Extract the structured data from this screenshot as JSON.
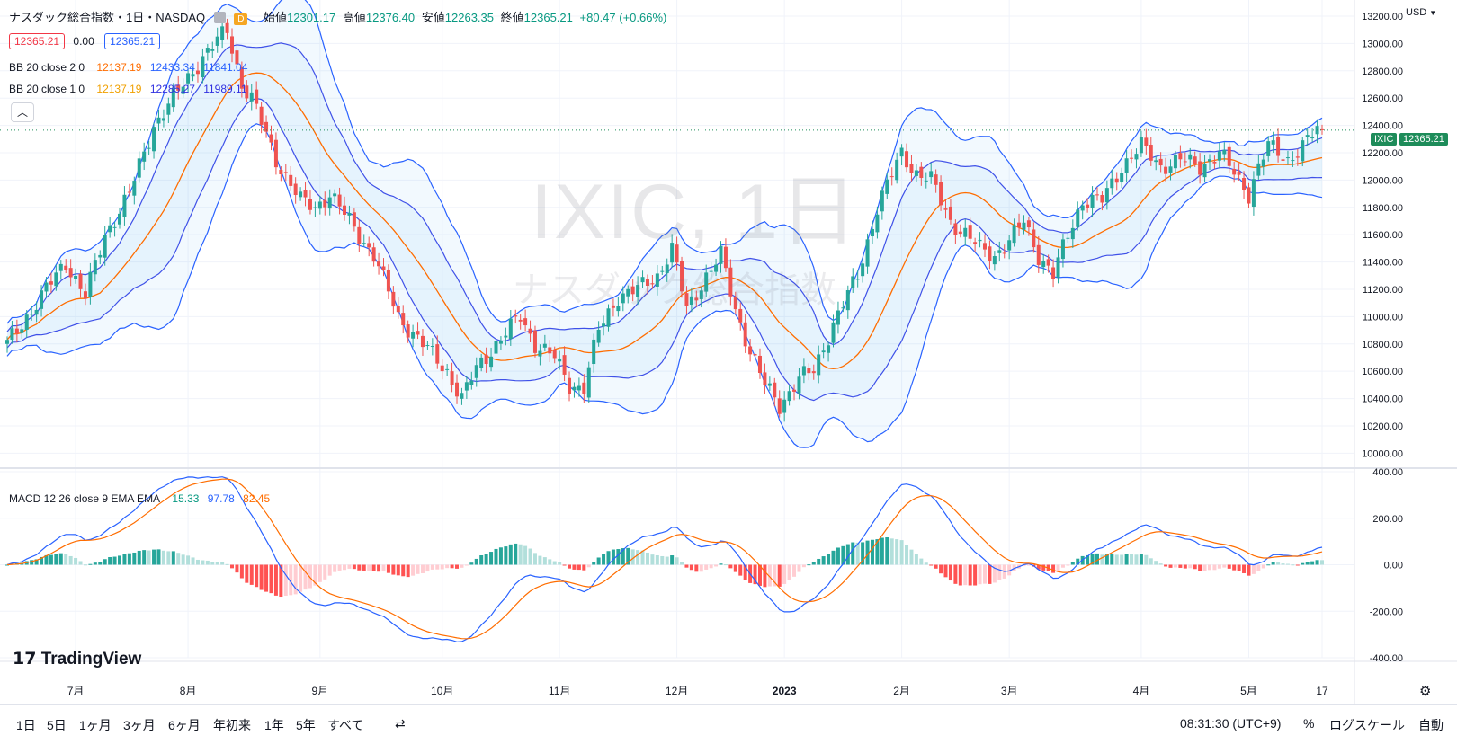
{
  "header": {
    "symbol_title": "ナスダック総合指数・1日・NASDAQ",
    "open_label": "始値",
    "open": "12301.17",
    "high_label": "高値",
    "high": "12376.40",
    "low_label": "安値",
    "low": "12263.35",
    "close_label": "終値",
    "close": "12365.21",
    "change": "+80.47 (+0.66%)",
    "interval_badge": "D"
  },
  "order_row": {
    "sell": "12365.21",
    "spread": "0.00",
    "buy": "12365.21"
  },
  "bb_rows": [
    {
      "label": "BB 20 close 2 0",
      "basis": "12137.19",
      "upper": "12433.34",
      "lower": "11841.04"
    },
    {
      "label": "BB 20 close 1 0",
      "basis": "12137.19",
      "upper": "12285.27",
      "lower": "11989.11"
    }
  ],
  "macd_legend": {
    "label": "MACD 12 26 close 9 EMA EMA",
    "hist": "15.33",
    "macd": "97.78",
    "signal": "82.45"
  },
  "watermark": {
    "line1": "IXIC, 1日",
    "line2": "ナスダック総合指数"
  },
  "currency": "USD",
  "last_price_tag": {
    "symbol": "IXIC",
    "price": "12365.21"
  },
  "logo_text": "TradingView",
  "bottom_bar": {
    "ranges": [
      "1日",
      "5日",
      "1ヶ月",
      "3ヶ月",
      "6ヶ月",
      "年初来",
      "1年",
      "5年",
      "すべて"
    ],
    "time": "08:31:30 (UTC+9)",
    "percent": "%",
    "log": "ログスケール",
    "auto": "自動"
  },
  "colors": {
    "up": "#26a69a",
    "down": "#ef5350",
    "bb_band": "#2962ff",
    "basis": "#ff6d00",
    "macd": "#2962ff",
    "signal": "#ff6d00",
    "grid": "#f0f3fa",
    "last": "#1e8c5a"
  },
  "chart_data": [
    {
      "type": "candlestick",
      "title": "ナスダック総合指数・1日・NASDAQ",
      "y_ticks": [
        "13200.00",
        "13000.00",
        "12800.00",
        "12600.00",
        "12400.00",
        "12200.00",
        "12000.00",
        "11800.00",
        "11600.00",
        "11400.00",
        "11200.00",
        "11000.00",
        "10800.00",
        "10600.00",
        "10400.00",
        "10200.00",
        "10000.00"
      ],
      "ylim": [
        9930,
        13200
      ],
      "x_ticks": [
        "7月",
        "8月",
        "9月",
        "10月",
        "11月",
        "12月",
        "2023",
        "2月",
        "3月",
        "4月",
        "5月",
        "17"
      ],
      "x_tick_index": [
        14,
        37,
        64,
        89,
        113,
        137,
        159,
        183,
        205,
        232,
        254,
        269
      ],
      "keypoints_close": [
        [
          0,
          10800
        ],
        [
          5,
          11050
        ],
        [
          12,
          11400
        ],
        [
          16,
          11150
        ],
        [
          20,
          11600
        ],
        [
          25,
          11900
        ],
        [
          30,
          12400
        ],
        [
          35,
          12650
        ],
        [
          40,
          12900
        ],
        [
          45,
          13100
        ],
        [
          48,
          12700
        ],
        [
          50,
          12600
        ],
        [
          55,
          12150
        ],
        [
          60,
          11850
        ],
        [
          63,
          11800
        ],
        [
          66,
          11900
        ],
        [
          70,
          11700
        ],
        [
          75,
          11450
        ],
        [
          80,
          11000
        ],
        [
          85,
          10800
        ],
        [
          90,
          10600
        ],
        [
          93,
          10400
        ],
        [
          96,
          10620
        ],
        [
          100,
          10800
        ],
        [
          105,
          11000
        ],
        [
          108,
          10800
        ],
        [
          112,
          10700
        ],
        [
          115,
          10500
        ],
        [
          118,
          10480
        ],
        [
          121,
          10900
        ],
        [
          125,
          11150
        ],
        [
          129,
          11200
        ],
        [
          133,
          11300
        ],
        [
          136,
          11500
        ],
        [
          139,
          11050
        ],
        [
          143,
          11300
        ],
        [
          146,
          11450
        ],
        [
          149,
          11050
        ],
        [
          152,
          10750
        ],
        [
          155,
          10500
        ],
        [
          158,
          10350
        ],
        [
          162,
          10550
        ],
        [
          165,
          10600
        ],
        [
          169,
          10950
        ],
        [
          174,
          11300
        ],
        [
          178,
          11800
        ],
        [
          183,
          12200
        ],
        [
          186,
          12050
        ],
        [
          189,
          12000
        ],
        [
          193,
          11700
        ],
        [
          196,
          11600
        ],
        [
          199,
          11500
        ],
        [
          202,
          11450
        ],
        [
          205,
          11550
        ],
        [
          208,
          11700
        ],
        [
          211,
          11450
        ],
        [
          214,
          11300
        ],
        [
          217,
          11600
        ],
        [
          220,
          11850
        ],
        [
          224,
          11850
        ],
        [
          228,
          12100
        ],
        [
          232,
          12250
        ],
        [
          236,
          12100
        ],
        [
          240,
          12150
        ],
        [
          244,
          12100
        ],
        [
          248,
          12200
        ],
        [
          251,
          12050
        ],
        [
          254,
          11900
        ],
        [
          256,
          12100
        ],
        [
          258,
          12250
        ],
        [
          262,
          12150
        ],
        [
          265,
          12250
        ],
        [
          268,
          12365
        ]
      ],
      "bb2": {
        "basis": "12137.19",
        "upper": "12433.34",
        "lower": "11841.04"
      },
      "bb1": {
        "basis": "12137.19",
        "upper": "12285.27",
        "lower": "11989.11"
      },
      "last": 12365.21
    },
    {
      "type": "line",
      "title": "MACD 12 26 close 9 EMA EMA",
      "y_ticks": [
        "400.00",
        "200.00",
        "0.00",
        "-200.00",
        "-400.00"
      ],
      "ylim": [
        -400,
        400
      ],
      "series": [
        {
          "name": "MACD",
          "value": 97.78
        },
        {
          "name": "Signal",
          "value": 82.45
        },
        {
          "name": "Histogram",
          "value": 15.33
        }
      ]
    }
  ]
}
